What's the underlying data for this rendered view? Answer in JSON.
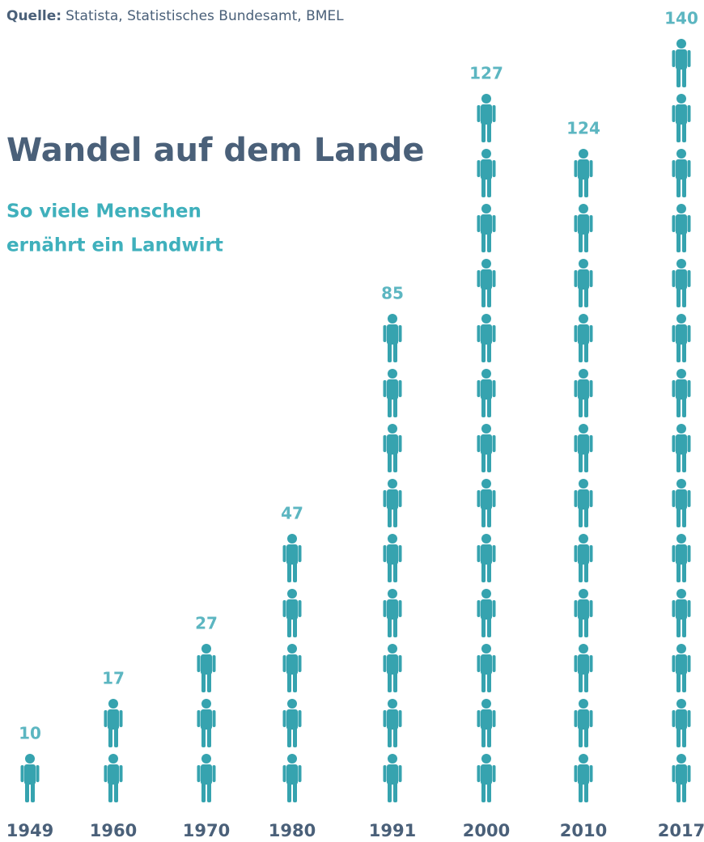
{
  "chart_data": {
    "type": "pictogram",
    "source": {
      "label": "Quelle:",
      "text": "Statista, Statistisches Bundesamt, BMEL"
    },
    "title": "Wandel auf dem Lande",
    "subtitle": [
      "So viele Menschen",
      "ernährt ein Landwirt"
    ],
    "categories": [
      "1949",
      "1960",
      "1970",
      "1980",
      "1991",
      "2000",
      "2010",
      "2017"
    ],
    "values": [
      10,
      17,
      27,
      47,
      85,
      127,
      124,
      140
    ],
    "icon_value": 10,
    "color": "#36a3af"
  }
}
